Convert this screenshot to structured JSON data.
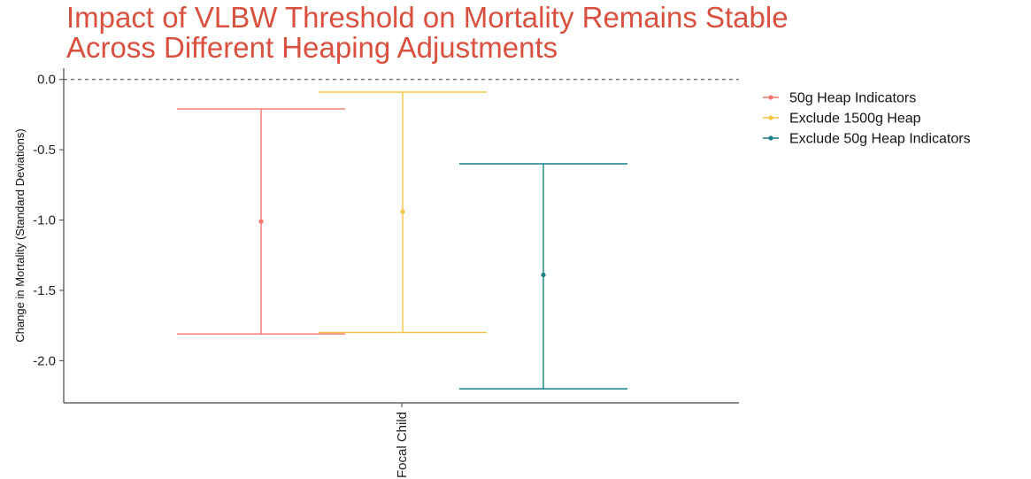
{
  "chart_data": {
    "type": "errorbar",
    "title_lines": [
      "Impact of VLBW Threshold on Mortality Remains Stable",
      "Across Different Heaping Adjustments"
    ],
    "xlabel": "",
    "ylabel": "Change in Mortality (Standard Deviations)",
    "categories": [
      "Focal Child"
    ],
    "ylim": [
      -2.3,
      0.08
    ],
    "yticks": [
      0.0,
      -0.5,
      -1.0,
      -1.5,
      -2.0
    ],
    "ytick_labels": [
      "0.0",
      "-0.5",
      "-1.0",
      "-1.5",
      "-2.0"
    ],
    "reference_line": 0.0,
    "grid": false,
    "legend_position": "right",
    "series": [
      {
        "name": "50g Heap Indicators",
        "color": "#f8766d",
        "estimate": -1.01,
        "lower": -1.81,
        "upper": -0.21
      },
      {
        "name": "Exclude 1500g Heap",
        "color": "#f5c342",
        "estimate": -0.94,
        "lower": -1.8,
        "upper": -0.09
      },
      {
        "name": "Exclude 50g Heap Indicators",
        "color": "#1a7f86",
        "estimate": -1.39,
        "lower": -2.2,
        "upper": -0.6
      }
    ]
  }
}
